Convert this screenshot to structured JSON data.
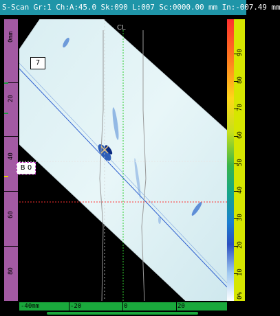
{
  "title_bar": {
    "text": "S-Scan Gr:1 Ch:A:45.0 Sk:090 L:007 Sc:0000.00 mm In:-007.49 mm"
  },
  "left_ruler": {
    "unit_label": "0mm",
    "ticks": [
      "20",
      "40",
      "60",
      "80"
    ]
  },
  "right_ruler": {
    "ticks": [
      "0%",
      "10",
      "20",
      "30",
      "40",
      "50",
      "60",
      "70",
      "80",
      "90"
    ]
  },
  "bottom_ruler": {
    "ticks": [
      "-40mm",
      "-20",
      "0",
      "20"
    ]
  },
  "centerline_label": "CL",
  "gate_label": "7",
  "cursor_tag": "B 0",
  "colors": {
    "title_bar": "#1f95a8",
    "left_ruler": "#a35aa3",
    "right_ruler": "#d6e600",
    "bottom_ruler": "#1aa83c",
    "beam": "#e6f4f6",
    "indication": "#1a5fc0",
    "reference_cursor": "#ffffff",
    "measure_cursor": "#ff3030",
    "centerline": "#2fd02f",
    "weld_profile": "#9a9a9a"
  }
}
